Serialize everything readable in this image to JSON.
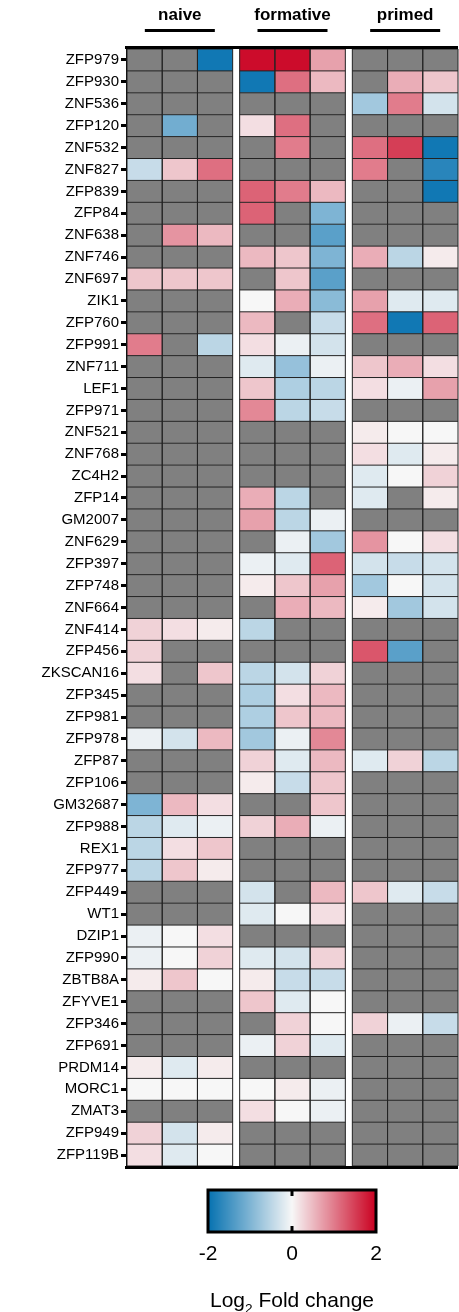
{
  "chart_data": {
    "type": "heatmap",
    "categories": [
      null,
      null,
      null,
      null,
      null,
      null,
      null,
      null,
      null
    ],
    "clim": [
      -2,
      2
    ],
    "cticks": [
      -2,
      0,
      2
    ],
    "clabel": "Log$_{2}$ Fold change",
    "annotations": [
      "naive",
      "formative",
      "primed"
    ],
    "y_categories": [
      "ZFP979",
      "ZFP930",
      "ZNF536",
      "ZFP120",
      "ZNF532",
      "ZNF827",
      "ZFP839",
      "ZFP84",
      "ZNF638",
      "ZNF746",
      "ZNF697",
      "ZIK1",
      "ZFP760",
      "ZFP991",
      "ZNF711",
      "LEF1",
      "ZFP971",
      "ZNF521",
      "ZNF768",
      "ZC4H2",
      "ZFP14",
      "GM2007",
      "ZNF629",
      "ZFP397",
      "ZFP748",
      "ZNF664",
      "ZNF414",
      "ZFP456",
      "ZKSCAN16",
      "ZFP345",
      "ZFP981",
      "ZFP978",
      "ZFP87",
      "ZFP106",
      "GM32687",
      "ZFP988",
      "REX1",
      "ZFP977",
      "ZFP449",
      "WT1",
      "DZIP1",
      "ZFP990",
      "ZBTB8A",
      "ZFYVE1",
      "ZFP346",
      "ZFP691",
      "PRDM14",
      "MORC1",
      "ZMAT3",
      "ZFP949",
      "ZFP119B"
    ],
    "cells": [
      [
        null,
        null,
        -1.9,
        1.9,
        1.9,
        0.7,
        null,
        null,
        null
      ],
      [
        null,
        null,
        null,
        -1.9,
        1.1,
        0.5,
        null,
        0.6,
        0.4
      ],
      [
        null,
        null,
        null,
        null,
        null,
        null,
        -0.7,
        1.0,
        -0.3
      ],
      [
        null,
        -1.1,
        null,
        0.2,
        1.1,
        null,
        null,
        null,
        null
      ],
      [
        null,
        null,
        null,
        null,
        1.0,
        null,
        1.1,
        1.5,
        -1.9
      ],
      [
        -0.4,
        0.4,
        1.1,
        null,
        null,
        null,
        1.0,
        null,
        -1.7
      ],
      [
        null,
        null,
        null,
        1.2,
        1.0,
        0.5,
        null,
        null,
        -1.9
      ],
      [
        null,
        null,
        null,
        1.2,
        null,
        -1.0,
        null,
        null,
        null
      ],
      [
        null,
        0.8,
        0.5,
        null,
        null,
        -1.3,
        null,
        null,
        null
      ],
      [
        null,
        null,
        null,
        0.5,
        0.4,
        -1.0,
        0.6,
        -0.5,
        0.1
      ],
      [
        0.4,
        0.4,
        0.4,
        null,
        0.4,
        -1.3,
        null,
        null,
        null
      ],
      [
        null,
        null,
        null,
        0,
        0.6,
        -0.9,
        0.7,
        -0.2,
        -0.2
      ],
      [
        null,
        null,
        null,
        0.5,
        null,
        -0.4,
        1.1,
        -1.9,
        1.2
      ],
      [
        1.0,
        null,
        -0.5,
        0.2,
        -0.1,
        -0.3,
        null,
        null,
        null
      ],
      [
        null,
        null,
        null,
        -0.2,
        -0.8,
        -0.1,
        0.4,
        0.6,
        0.2
      ],
      [
        null,
        null,
        null,
        0.4,
        -0.6,
        -0.5,
        0.2,
        -0.1,
        0.7
      ],
      [
        null,
        null,
        null,
        0.9,
        -0.5,
        -0.4,
        null,
        null,
        null
      ],
      [
        null,
        null,
        null,
        null,
        null,
        null,
        0.1,
        0,
        0
      ],
      [
        null,
        null,
        null,
        null,
        null,
        null,
        0.2,
        -0.2,
        0.1
      ],
      [
        null,
        null,
        null,
        null,
        null,
        null,
        -0.2,
        0,
        0.3
      ],
      [
        null,
        null,
        null,
        0.6,
        -0.5,
        null,
        -0.2,
        null,
        0.1
      ],
      [
        null,
        null,
        null,
        0.7,
        -0.5,
        -0.1,
        null,
        null,
        null
      ],
      [
        null,
        null,
        null,
        null,
        -0.1,
        -0.7,
        0.8,
        0,
        0.2
      ],
      [
        null,
        null,
        null,
        -0.1,
        -0.2,
        1.2,
        -0.3,
        -0.4,
        -0.3
      ],
      [
        null,
        null,
        null,
        0.1,
        0.4,
        0.7,
        -0.7,
        0,
        -0.3
      ],
      [
        null,
        null,
        null,
        null,
        0.6,
        0.5,
        0.1,
        -0.7,
        -0.3
      ],
      [
        0.3,
        0.2,
        0.1,
        -0.5,
        null,
        null,
        null,
        null,
        null
      ],
      [
        0.3,
        null,
        null,
        null,
        null,
        null,
        1.3,
        -1.3,
        null
      ],
      [
        0.2,
        null,
        0.4,
        -0.5,
        -0.3,
        0.3,
        null,
        null,
        null
      ],
      [
        null,
        null,
        null,
        -0.6,
        0.2,
        0.5,
        null,
        null,
        null
      ],
      [
        null,
        null,
        null,
        -0.6,
        0.4,
        0.5,
        null,
        null,
        null
      ],
      [
        -0.1,
        -0.3,
        0.5,
        -0.7,
        -0.1,
        0.9,
        null,
        null,
        null
      ],
      [
        null,
        null,
        null,
        0.3,
        -0.2,
        0.5,
        -0.2,
        0.3,
        -0.5
      ],
      [
        null,
        null,
        null,
        0.1,
        -0.4,
        0.4,
        null,
        null,
        null
      ],
      [
        -1.0,
        0.5,
        0.2,
        null,
        null,
        0.4,
        null,
        null,
        null
      ],
      [
        -0.5,
        -0.2,
        -0.1,
        0.3,
        0.6,
        -0.1,
        null,
        null,
        null
      ],
      [
        -0.5,
        0.2,
        0.4,
        null,
        null,
        null,
        null,
        null,
        null
      ],
      [
        -0.5,
        0.4,
        0.1,
        null,
        null,
        null,
        null,
        null,
        null
      ],
      [
        null,
        null,
        null,
        -0.3,
        null,
        0.5,
        0.4,
        -0.2,
        -0.4
      ],
      [
        null,
        null,
        null,
        -0.2,
        0,
        0.2,
        null,
        null,
        null
      ],
      [
        -0.1,
        0,
        0.2,
        null,
        null,
        null,
        null,
        null,
        null
      ],
      [
        -0.1,
        0,
        0.3,
        -0.2,
        -0.3,
        0.3,
        null,
        null,
        null
      ],
      [
        0.1,
        0.4,
        0,
        0.1,
        -0.4,
        -0.4,
        null,
        null,
        null
      ],
      [
        null,
        null,
        null,
        0.4,
        -0.2,
        0,
        null,
        null,
        null
      ],
      [
        null,
        null,
        null,
        null,
        0.3,
        0,
        0.3,
        -0.1,
        -0.4
      ],
      [
        null,
        null,
        null,
        -0.1,
        0.3,
        -0.2,
        null,
        null,
        null
      ],
      [
        0.1,
        -0.2,
        0.1,
        null,
        null,
        null,
        null,
        null,
        null
      ],
      [
        0,
        0,
        0,
        0,
        0.1,
        -0.1,
        null,
        null,
        null
      ],
      [
        null,
        null,
        null,
        0.2,
        0,
        -0.1,
        null,
        null,
        null
      ],
      [
        0.3,
        -0.3,
        0.1,
        null,
        null,
        null,
        null,
        null,
        null
      ],
      [
        0.2,
        -0.2,
        0,
        null,
        null,
        null,
        null,
        null,
        null
      ]
    ]
  }
}
